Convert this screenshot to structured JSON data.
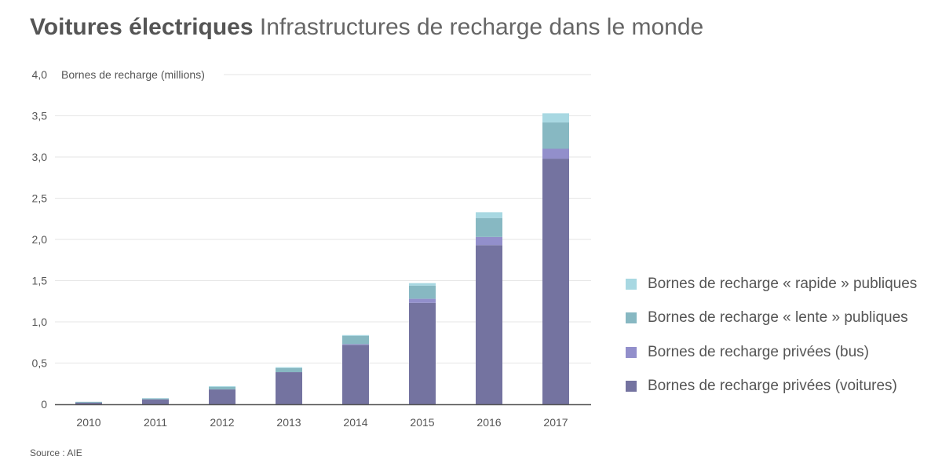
{
  "title": {
    "bold": "Voitures électriques",
    "subtitle": "Infrastructures de recharge dans le monde"
  },
  "source": "Source : AIE",
  "chart_data": {
    "type": "bar",
    "stacked": true,
    "title": "Voitures électriques Infrastructures de recharge dans le monde",
    "ylabel": "Bornes de recharge (millions)",
    "xlabel": "",
    "ylim": [
      0,
      4.0
    ],
    "yticks": [
      "0",
      "0,5",
      "1,0",
      "1,5",
      "2,0",
      "2,5",
      "3,0",
      "3,5",
      "4,0"
    ],
    "ytick_values": [
      0,
      0.5,
      1.0,
      1.5,
      2.0,
      2.5,
      3.0,
      3.5,
      4.0
    ],
    "grid": true,
    "legend_placement": "right",
    "categories": [
      "2010",
      "2011",
      "2012",
      "2013",
      "2014",
      "2015",
      "2016",
      "2017"
    ],
    "series": [
      {
        "name": "Bornes de recharge privées (voitures)",
        "color": "#7473a0",
        "values": [
          0.02,
          0.06,
          0.18,
          0.39,
          0.72,
          1.23,
          1.93,
          2.98
        ]
      },
      {
        "name": "Bornes de recharge privées (bus)",
        "color": "#928fcb",
        "values": [
          0.0,
          0.0,
          0.0,
          0.0,
          0.01,
          0.05,
          0.1,
          0.12
        ]
      },
      {
        "name": "Bornes de recharge « lente » publiques",
        "color": "#87b8c2",
        "values": [
          0.01,
          0.01,
          0.03,
          0.05,
          0.1,
          0.16,
          0.23,
          0.32
        ]
      },
      {
        "name": "Bornes de recharge « rapide » publiques",
        "color": "#a8d8e2",
        "values": [
          0.0,
          0.005,
          0.01,
          0.01,
          0.01,
          0.03,
          0.07,
          0.11
        ]
      }
    ]
  }
}
